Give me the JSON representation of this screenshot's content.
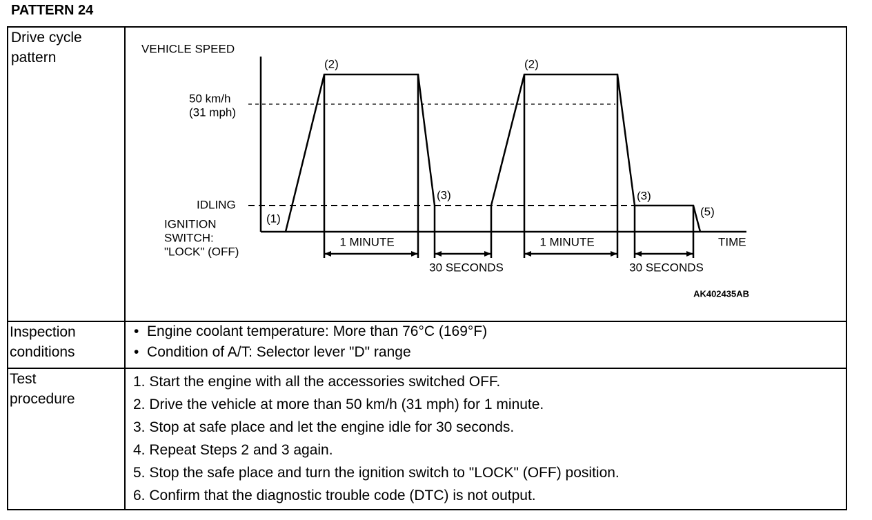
{
  "title": "PATTERN 24",
  "table": {
    "rows": [
      {
        "label": [
          "Drive cycle",
          "pattern"
        ],
        "diagram": {
          "y_axis": "VEHICLE SPEED",
          "speed": [
            "50 km/h",
            "(31 mph)"
          ],
          "idling": "IDLING",
          "ignition": [
            "IGNITION",
            "SWITCH:",
            "\"LOCK\" (OFF)"
          ],
          "points": [
            "(1)",
            "(2)",
            "(2)",
            "(3)",
            "(3)",
            "(5)"
          ],
          "durations": [
            "1 MINUTE",
            "30 SECONDS",
            "1 MINUTE",
            "30 SECONDS"
          ],
          "x_axis": "TIME",
          "figure_id": "AK402435AB"
        }
      },
      {
        "label": [
          "Inspection",
          "conditions"
        ],
        "items": [
          "Engine coolant temperature: More than 76°C (169°F)",
          "Condition of A/T: Selector lever \"D\" range"
        ]
      },
      {
        "label": [
          "Test",
          "procedure"
        ],
        "items": [
          "1. Start the engine with all the accessories switched OFF.",
          "2. Drive the vehicle at more than 50 km/h (31 mph) for 1 minute.",
          "3. Stop at safe place and let the engine idle for 30 seconds.",
          "4. Repeat Steps 2 and 3 again.",
          "5. Stop the safe place and turn the ignition switch to \"LOCK\" (OFF) position.",
          "6. Confirm that the diagnostic trouble code (DTC) is not output."
        ]
      }
    ]
  }
}
